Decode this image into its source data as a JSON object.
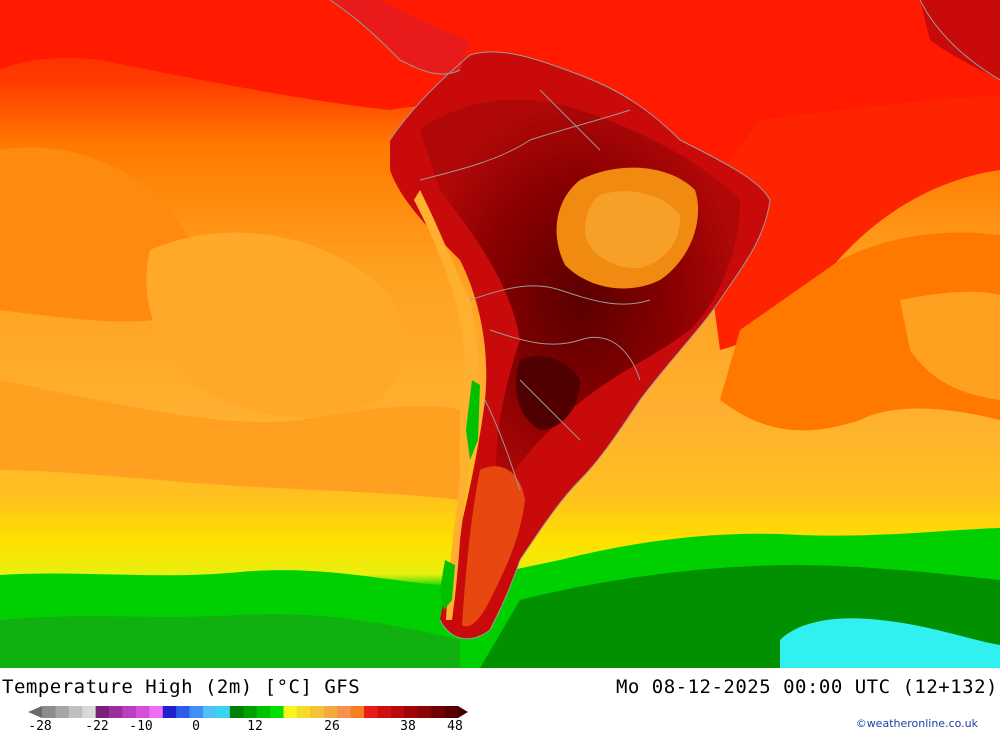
{
  "header": {
    "title": "Temperature High (2m) [°C] GFS",
    "datetime": "Mo 08-12-2025 00:00 UTC (12+132)"
  },
  "credit": "©weatheronline.co.uk",
  "legend": {
    "ticks": [
      "-28",
      "-22",
      "-10",
      "0",
      "12",
      "26",
      "38",
      "48"
    ],
    "colors": [
      "#8c8c8c",
      "#a6a6a6",
      "#bfbfbf",
      "#d9d9d9",
      "#7a1f7a",
      "#9b2fa0",
      "#b840c0",
      "#d64fd8",
      "#ef6ff0",
      "#1f1fd0",
      "#2f5bea",
      "#3f8ff5",
      "#4fc3f7",
      "#3bd4f0",
      "#008000",
      "#00a000",
      "#00c000",
      "#00e000",
      "#f5f51f",
      "#f5dc2a",
      "#f5c335",
      "#f5aa40",
      "#f5914b",
      "#f57f1f",
      "#e81a1a",
      "#d01010",
      "#b80a0a",
      "#a00505",
      "#880303",
      "#700000",
      "#580000"
    ],
    "below_arrow_color": "#6b6b6b",
    "above_arrow_color": "#400000"
  },
  "map": {
    "region": "South America",
    "ocean_warm": "#ff1a00",
    "ocean_orange": "#ff8c00",
    "ocean_gold": "#ffb030",
    "ocean_yellow": "#ffd000",
    "land_dark": "#7a0000",
    "land_mid": "#c80a0a",
    "cold_green": "#00c000",
    "cold_dark_green": "#008000",
    "cold_cyan": "#30f0f0",
    "border_color": "#9a9a9a"
  }
}
